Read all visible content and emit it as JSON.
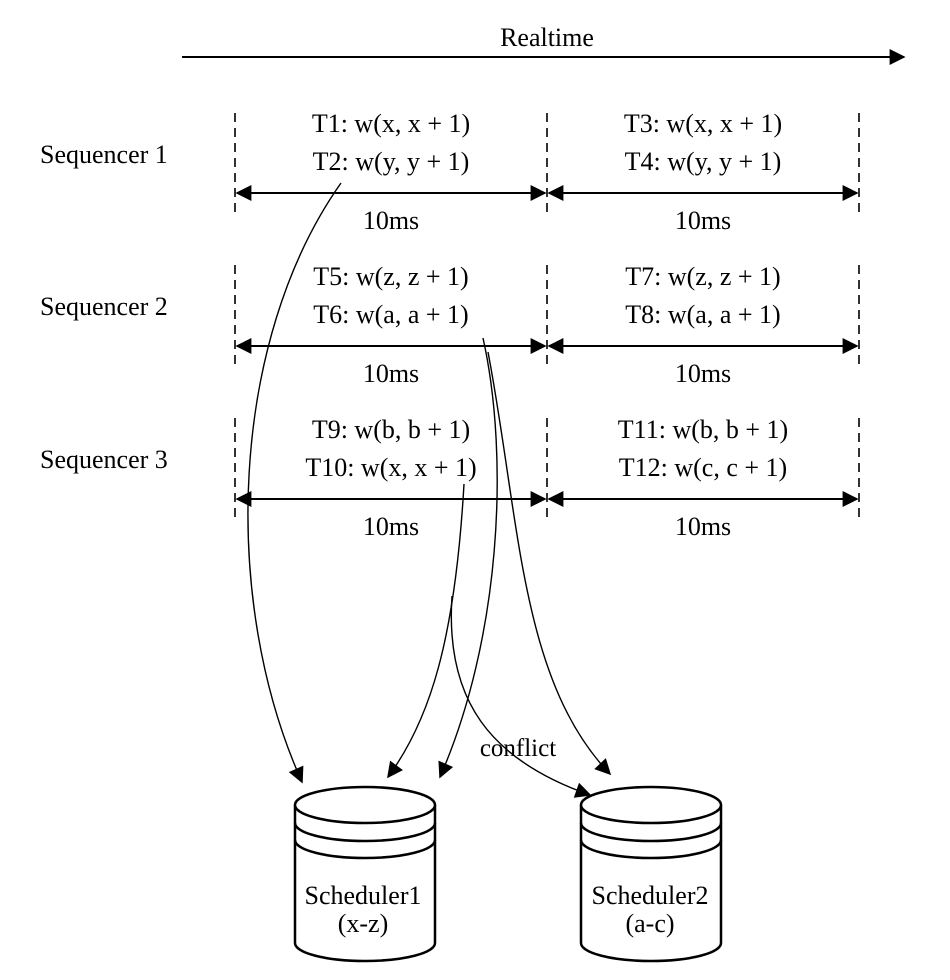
{
  "realtime_label": "Realtime",
  "sequencers": [
    {
      "label": "Sequencer 1",
      "epochs": [
        {
          "txns": [
            "T1: w(x, x + 1)",
            "T2: w(y, y + 1)"
          ],
          "duration": "10ms"
        },
        {
          "txns": [
            "T3: w(x, x + 1)",
            "T4: w(y, y + 1)"
          ],
          "duration": "10ms"
        }
      ]
    },
    {
      "label": "Sequencer 2",
      "epochs": [
        {
          "txns": [
            "T5: w(z, z + 1)",
            "T6: w(a, a + 1)"
          ],
          "duration": "10ms"
        },
        {
          "txns": [
            "T7: w(z, z + 1)",
            "T8: w(a, a + 1)"
          ],
          "duration": "10ms"
        }
      ]
    },
    {
      "label": "Sequencer 3",
      "epochs": [
        {
          "txns": [
            "T9: w(b, b + 1)",
            "T10: w(x, x + 1)"
          ],
          "duration": "10ms"
        },
        {
          "txns": [
            "T11: w(b, b + 1)",
            "T12: w(c, c + 1)"
          ],
          "duration": "10ms"
        }
      ]
    }
  ],
  "schedulers": [
    {
      "name": "Scheduler1",
      "range": "(x-z)"
    },
    {
      "name": "Scheduler2",
      "range": "(a-c)"
    }
  ],
  "conflict_label": "conflict"
}
